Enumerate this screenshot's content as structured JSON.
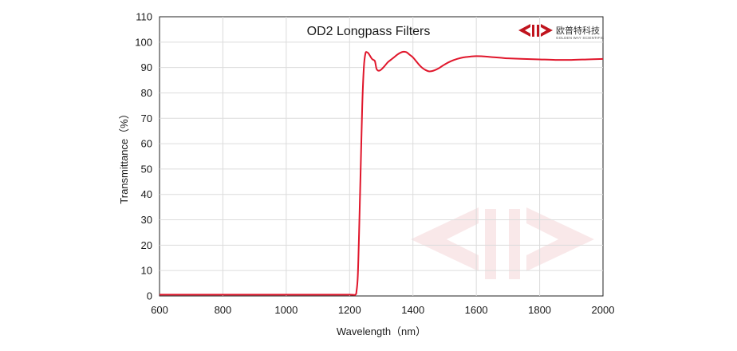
{
  "chart_data": {
    "type": "line",
    "title": "OD2  Longpass Filters",
    "xlabel": "Wavelength（nm）",
    "ylabel": "Transmittance（%）",
    "xlim": [
      600,
      2000
    ],
    "ylim": [
      0,
      110
    ],
    "xticks": [
      600,
      800,
      1000,
      1200,
      1400,
      1600,
      1800,
      2000
    ],
    "yticks": [
      0,
      10,
      20,
      30,
      40,
      50,
      60,
      70,
      80,
      90,
      100,
      110
    ],
    "grid": true,
    "legend": "none",
    "series": [
      {
        "color": "#e0162b",
        "x": [
          600,
          700,
          800,
          900,
          1000,
          1100,
          1200,
          1218,
          1222,
          1226,
          1230,
          1235,
          1240,
          1245,
          1250,
          1255,
          1260,
          1265,
          1270,
          1275,
          1280,
          1285,
          1290,
          1295,
          1300,
          1310,
          1320,
          1330,
          1340,
          1350,
          1360,
          1370,
          1380,
          1390,
          1400,
          1410,
          1420,
          1430,
          1440,
          1450,
          1460,
          1470,
          1480,
          1490,
          1500,
          1520,
          1540,
          1560,
          1580,
          1600,
          1620,
          1640,
          1660,
          1680,
          1700,
          1750,
          1800,
          1850,
          1900,
          1950,
          2000
        ],
        "y": [
          0.5,
          0.5,
          0.5,
          0.5,
          0.5,
          0.5,
          0.5,
          0.5,
          2,
          8,
          25,
          50,
          75,
          90,
          95.5,
          96,
          95.5,
          94.5,
          93.5,
          93,
          92.5,
          89.5,
          88.8,
          88.8,
          89.2,
          90.5,
          92,
          93,
          94,
          95,
          95.8,
          96.2,
          96,
          95,
          94,
          92.5,
          91,
          89.8,
          89,
          88.5,
          88.6,
          89,
          89.6,
          90.4,
          91.2,
          92.5,
          93.4,
          94,
          94.3,
          94.5,
          94.4,
          94.2,
          94,
          93.8,
          93.6,
          93.4,
          93.2,
          93,
          93,
          93.2,
          93.4
        ]
      }
    ]
  },
  "logo": {
    "name_cn": "欧普特科技",
    "name_en": "GOLDEN WAY SCIENTIFIC",
    "color": "#c0141e"
  }
}
